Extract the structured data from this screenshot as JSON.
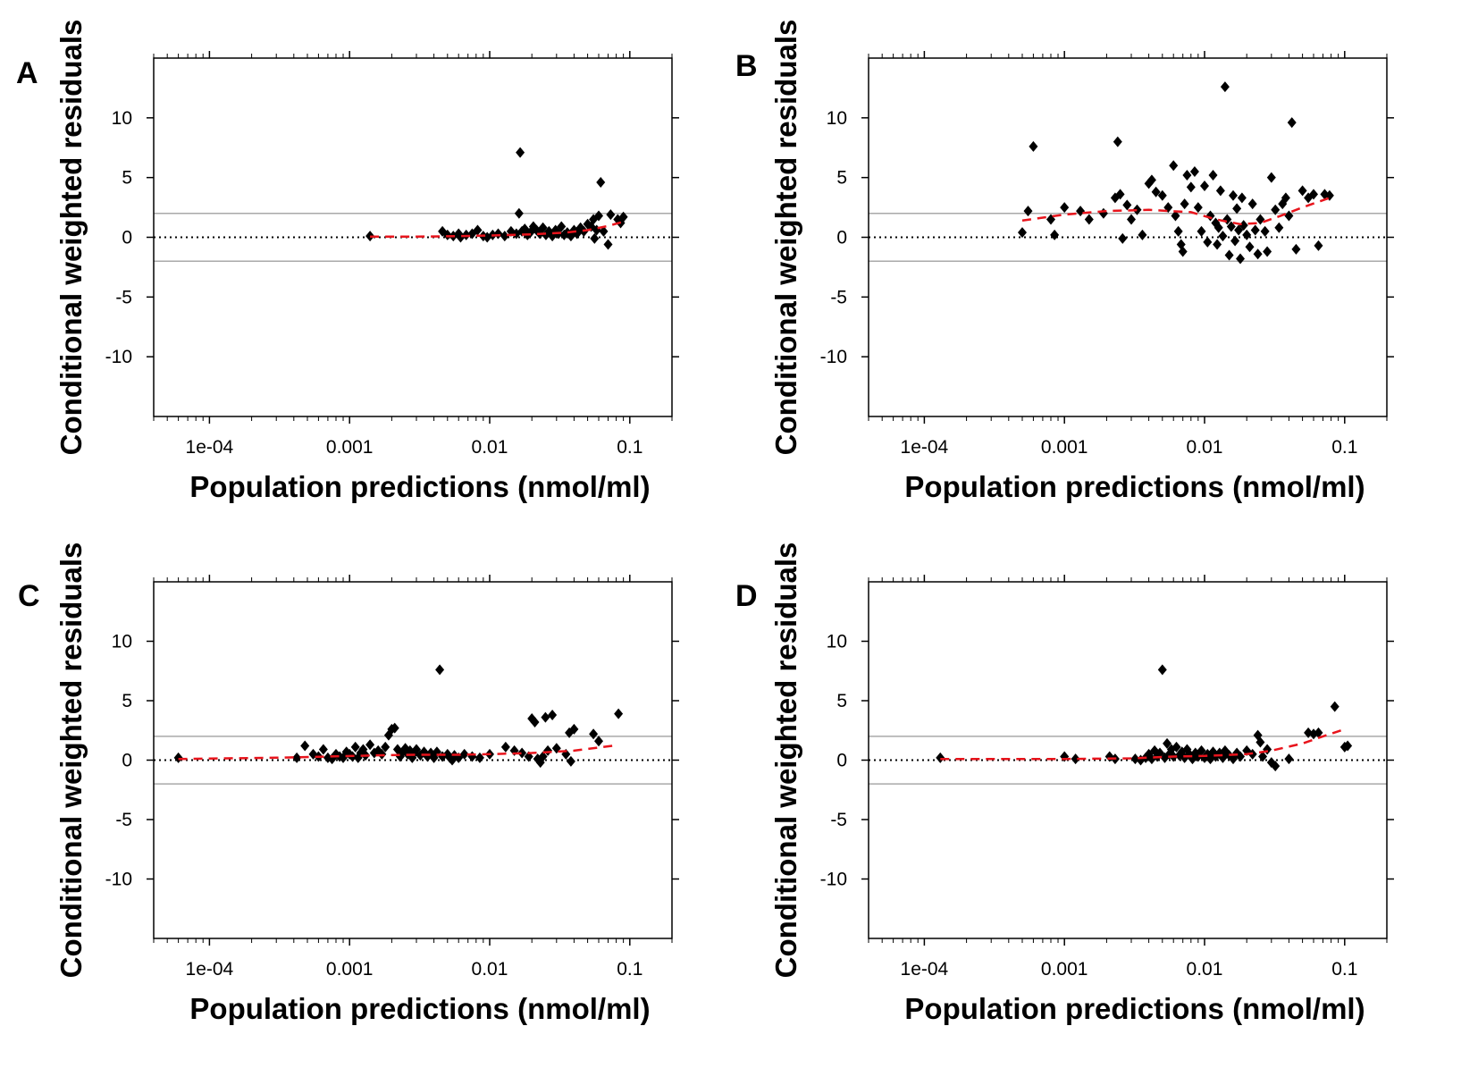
{
  "figure": {
    "background": "#ffffff"
  },
  "colors": {
    "axis": "#000000",
    "point": "#000000",
    "smooth": "#e8141c",
    "ref_band": "#a9a9a9",
    "zero_line": "#000000"
  },
  "chart_data": [
    {
      "panel": "A",
      "type": "scatter",
      "xlabel": "Population predictions (nmol/ml)",
      "ylabel": "Conditional weighted residuals",
      "xscale": "log",
      "xlim": [
        4e-05,
        0.2
      ],
      "ylim": [
        -15,
        15
      ],
      "x_ticks": [
        0.0001,
        0.001,
        0.01,
        0.1
      ],
      "x_tick_labels": [
        "1e-04",
        "0.001",
        "0.01",
        "0.1"
      ],
      "y_ticks": [
        -10,
        -5,
        0,
        5,
        10
      ],
      "y_tick_labels": [
        "-10",
        "-5",
        "0",
        "5",
        "10"
      ],
      "reference_lines": [
        {
          "y": 0,
          "style": "dotted"
        },
        {
          "y": 2,
          "style": "solid-gray"
        },
        {
          "y": -2,
          "style": "solid-gray"
        }
      ],
      "points": [
        [
          0.0014,
          0.1
        ],
        [
          0.0046,
          0.5
        ],
        [
          0.005,
          0.2
        ],
        [
          0.0055,
          0.1
        ],
        [
          0.006,
          0.3
        ],
        [
          0.0062,
          0
        ],
        [
          0.0068,
          0.2
        ],
        [
          0.0075,
          0.3
        ],
        [
          0.0082,
          0.6
        ],
        [
          0.009,
          0.1
        ],
        [
          0.0096,
          0
        ],
        [
          0.0105,
          0.2
        ],
        [
          0.0115,
          0.3
        ],
        [
          0.0128,
          0.1
        ],
        [
          0.0142,
          0.5
        ],
        [
          0.0155,
          0.3
        ],
        [
          0.0162,
          2
        ],
        [
          0.0165,
          7.1
        ],
        [
          0.017,
          0.5
        ],
        [
          0.0178,
          0.7
        ],
        [
          0.0186,
          0.2
        ],
        [
          0.0195,
          0.4
        ],
        [
          0.0205,
          0.9
        ],
        [
          0.0216,
          0.6
        ],
        [
          0.0228,
          0.3
        ],
        [
          0.024,
          0.8
        ],
        [
          0.0252,
          0.2
        ],
        [
          0.0265,
          0.5
        ],
        [
          0.028,
          0.1
        ],
        [
          0.0295,
          0.6
        ],
        [
          0.031,
          0.3
        ],
        [
          0.0325,
          0.9
        ],
        [
          0.034,
          0.2
        ],
        [
          0.0358,
          0.4
        ],
        [
          0.038,
          0.1
        ],
        [
          0.04,
          0.6
        ],
        [
          0.042,
          0.3
        ],
        [
          0.0445,
          0.8
        ],
        [
          0.047,
          0.5
        ],
        [
          0.05,
          1.1
        ],
        [
          0.053,
          0.9
        ],
        [
          0.055,
          1.5
        ],
        [
          0.056,
          -0.1
        ],
        [
          0.058,
          0.6
        ],
        [
          0.06,
          1.8
        ],
        [
          0.062,
          4.6
        ],
        [
          0.065,
          0.5
        ],
        [
          0.07,
          -0.6
        ],
        [
          0.073,
          1.9
        ],
        [
          0.082,
          1.5
        ],
        [
          0.086,
          1.2
        ],
        [
          0.09,
          1.7
        ]
      ],
      "smooth": [
        [
          0.0014,
          0.05
        ],
        [
          0.003,
          0.05
        ],
        [
          0.006,
          0.1
        ],
        [
          0.01,
          0.15
        ],
        [
          0.02,
          0.25
        ],
        [
          0.035,
          0.4
        ],
        [
          0.05,
          0.6
        ],
        [
          0.07,
          0.95
        ],
        [
          0.09,
          1.3
        ]
      ]
    },
    {
      "panel": "B",
      "type": "scatter",
      "xlabel": "Population predictions (nmol/ml)",
      "ylabel": "Conditional weighted residuals",
      "xscale": "log",
      "xlim": [
        4e-05,
        0.2
      ],
      "ylim": [
        -15,
        15
      ],
      "x_ticks": [
        0.0001,
        0.001,
        0.01,
        0.1
      ],
      "x_tick_labels": [
        "1e-04",
        "0.001",
        "0.01",
        "0.1"
      ],
      "y_ticks": [
        -10,
        -5,
        0,
        5,
        10
      ],
      "y_tick_labels": [
        "-10",
        "-5",
        "0",
        "5",
        "10"
      ],
      "reference_lines": [
        {
          "y": 0,
          "style": "dotted"
        },
        {
          "y": 2,
          "style": "solid-gray"
        },
        {
          "y": -2,
          "style": "solid-gray"
        }
      ],
      "points": [
        [
          0.0005,
          0.4
        ],
        [
          0.00055,
          2.2
        ],
        [
          0.0006,
          7.6
        ],
        [
          0.0008,
          1.5
        ],
        [
          0.00085,
          0.2
        ],
        [
          0.001,
          2.5
        ],
        [
          0.0013,
          2.2
        ],
        [
          0.0015,
          1.5
        ],
        [
          0.0019,
          2
        ],
        [
          0.0023,
          3.3
        ],
        [
          0.0024,
          8
        ],
        [
          0.0025,
          3.6
        ],
        [
          0.0026,
          -0.1
        ],
        [
          0.0028,
          2.7
        ],
        [
          0.003,
          1.5
        ],
        [
          0.0033,
          2.3
        ],
        [
          0.0036,
          0.2
        ],
        [
          0.004,
          4.5
        ],
        [
          0.0042,
          4.8
        ],
        [
          0.0045,
          3.8
        ],
        [
          0.005,
          3.5
        ],
        [
          0.0055,
          2.5
        ],
        [
          0.006,
          6
        ],
        [
          0.0062,
          1.8
        ],
        [
          0.0065,
          0.5
        ],
        [
          0.0068,
          -0.6
        ],
        [
          0.007,
          -1.2
        ],
        [
          0.0072,
          2.8
        ],
        [
          0.0075,
          5.2
        ],
        [
          0.008,
          4.2
        ],
        [
          0.0085,
          5.5
        ],
        [
          0.009,
          2.5
        ],
        [
          0.0095,
          0.5
        ],
        [
          0.01,
          4.3
        ],
        [
          0.0105,
          -0.4
        ],
        [
          0.011,
          1.8
        ],
        [
          0.0115,
          5.2
        ],
        [
          0.012,
          1.2
        ],
        [
          0.0123,
          -0.6
        ],
        [
          0.0126,
          0.8
        ],
        [
          0.013,
          3.9
        ],
        [
          0.0135,
          0.1
        ],
        [
          0.014,
          12.6
        ],
        [
          0.0145,
          1.5
        ],
        [
          0.015,
          -1.5
        ],
        [
          0.0155,
          0.9
        ],
        [
          0.016,
          3.5
        ],
        [
          0.0165,
          -0.3
        ],
        [
          0.017,
          2.4
        ],
        [
          0.0175,
          0.6
        ],
        [
          0.018,
          -1.8
        ],
        [
          0.0185,
          3.3
        ],
        [
          0.019,
          1
        ],
        [
          0.02,
          0.2
        ],
        [
          0.021,
          -0.8
        ],
        [
          0.022,
          2.8
        ],
        [
          0.023,
          0.6
        ],
        [
          0.024,
          -1.4
        ],
        [
          0.025,
          1.5
        ],
        [
          0.027,
          0.5
        ],
        [
          0.028,
          -1.2
        ],
        [
          0.03,
          5
        ],
        [
          0.032,
          2.3
        ],
        [
          0.034,
          0.8
        ],
        [
          0.036,
          2.8
        ],
        [
          0.038,
          3.3
        ],
        [
          0.04,
          1.8
        ],
        [
          0.042,
          9.6
        ],
        [
          0.045,
          -1
        ],
        [
          0.05,
          3.9
        ],
        [
          0.055,
          3.3
        ],
        [
          0.06,
          3.6
        ],
        [
          0.065,
          -0.7
        ],
        [
          0.072,
          3.6
        ],
        [
          0.078,
          3.5
        ]
      ],
      "smooth": [
        [
          0.0005,
          1.4
        ],
        [
          0.001,
          1.9
        ],
        [
          0.002,
          2.2
        ],
        [
          0.004,
          2.3
        ],
        [
          0.008,
          2.1
        ],
        [
          0.012,
          1.5
        ],
        [
          0.018,
          1.1
        ],
        [
          0.025,
          1.2
        ],
        [
          0.035,
          1.8
        ],
        [
          0.05,
          2.5
        ],
        [
          0.078,
          3.3
        ]
      ]
    },
    {
      "panel": "C",
      "type": "scatter",
      "xlabel": "Population predictions (nmol/ml)",
      "ylabel": "Conditional weighted residuals",
      "xscale": "log",
      "xlim": [
        4e-05,
        0.2
      ],
      "ylim": [
        -15,
        15
      ],
      "x_ticks": [
        0.0001,
        0.001,
        0.01,
        0.1
      ],
      "x_tick_labels": [
        "1e-04",
        "0.001",
        "0.01",
        "0.1"
      ],
      "y_ticks": [
        -10,
        -5,
        0,
        5,
        10
      ],
      "y_tick_labels": [
        "-10",
        "-5",
        "0",
        "5",
        "10"
      ],
      "reference_lines": [
        {
          "y": 0,
          "style": "dotted"
        },
        {
          "y": 2,
          "style": "solid-gray"
        },
        {
          "y": -2,
          "style": "solid-gray"
        }
      ],
      "points": [
        [
          6e-05,
          0.2
        ],
        [
          0.00042,
          0.2
        ],
        [
          0.00048,
          1.2
        ],
        [
          0.00055,
          0.5
        ],
        [
          0.0006,
          0.3
        ],
        [
          0.00065,
          0.9
        ],
        [
          0.0007,
          0.2
        ],
        [
          0.00075,
          0.1
        ],
        [
          0.0008,
          0.5
        ],
        [
          0.00085,
          0.3
        ],
        [
          0.0009,
          0.2
        ],
        [
          0.00095,
          0.7
        ],
        [
          0.001,
          0.5
        ],
        [
          0.00105,
          0.3
        ],
        [
          0.0011,
          1.1
        ],
        [
          0.00115,
          0.2
        ],
        [
          0.0012,
          0.6
        ],
        [
          0.00125,
          0.9
        ],
        [
          0.0013,
          0.4
        ],
        [
          0.0014,
          1.3
        ],
        [
          0.0015,
          0.6
        ],
        [
          0.0016,
          0.8
        ],
        [
          0.0017,
          0.5
        ],
        [
          0.0018,
          1.1
        ],
        [
          0.0019,
          2.1
        ],
        [
          0.002,
          2.6
        ],
        [
          0.0021,
          2.7
        ],
        [
          0.0022,
          0.9
        ],
        [
          0.0023,
          0.3
        ],
        [
          0.0024,
          0.7
        ],
        [
          0.0025,
          1
        ],
        [
          0.0026,
          0.5
        ],
        [
          0.0027,
          0.8
        ],
        [
          0.0028,
          0.2
        ],
        [
          0.0029,
          0.6
        ],
        [
          0.003,
          0.9
        ],
        [
          0.0032,
          0.4
        ],
        [
          0.0034,
          0.7
        ],
        [
          0.0036,
          0.3
        ],
        [
          0.0038,
          0.6
        ],
        [
          0.004,
          0.2
        ],
        [
          0.0042,
          0.7
        ],
        [
          0.0044,
          7.6
        ],
        [
          0.0046,
          0.3
        ],
        [
          0.005,
          0.5
        ],
        [
          0.0052,
          0.2
        ],
        [
          0.0054,
          0
        ],
        [
          0.0056,
          0.4
        ],
        [
          0.006,
          0.2
        ],
        [
          0.0066,
          0.5
        ],
        [
          0.0075,
          0.3
        ],
        [
          0.0085,
          0.2
        ],
        [
          0.01,
          0.5
        ],
        [
          0.013,
          1.1
        ],
        [
          0.015,
          0.8
        ],
        [
          0.017,
          0.6
        ],
        [
          0.019,
          0.3
        ],
        [
          0.02,
          3.5
        ],
        [
          0.021,
          3.2
        ],
        [
          0.022,
          0.1
        ],
        [
          0.023,
          -0.2
        ],
        [
          0.024,
          0.3
        ],
        [
          0.025,
          3.6
        ],
        [
          0.026,
          0.8
        ],
        [
          0.028,
          3.8
        ],
        [
          0.03,
          1
        ],
        [
          0.035,
          0.5
        ],
        [
          0.037,
          2.3
        ],
        [
          0.038,
          -0.1
        ],
        [
          0.04,
          2.6
        ],
        [
          0.055,
          2.2
        ],
        [
          0.06,
          1.6
        ],
        [
          0.083,
          3.9
        ]
      ],
      "smooth": [
        [
          6e-05,
          0.1
        ],
        [
          0.0003,
          0.2
        ],
        [
          0.0007,
          0.3
        ],
        [
          0.0015,
          0.4
        ],
        [
          0.003,
          0.45
        ],
        [
          0.006,
          0.45
        ],
        [
          0.01,
          0.5
        ],
        [
          0.02,
          0.6
        ],
        [
          0.04,
          0.8
        ],
        [
          0.075,
          1.2
        ]
      ]
    },
    {
      "panel": "D",
      "type": "scatter",
      "xlabel": "Population predictions (nmol/ml)",
      "ylabel": "Conditional weighted residuals",
      "xscale": "log",
      "xlim": [
        4e-05,
        0.2
      ],
      "ylim": [
        -15,
        15
      ],
      "x_ticks": [
        0.0001,
        0.001,
        0.01,
        0.1
      ],
      "x_tick_labels": [
        "1e-04",
        "0.001",
        "0.01",
        "0.1"
      ],
      "y_ticks": [
        -10,
        -5,
        0,
        5,
        10
      ],
      "y_tick_labels": [
        "-10",
        "-5",
        "0",
        "5",
        "10"
      ],
      "reference_lines": [
        {
          "y": 0,
          "style": "dotted"
        },
        {
          "y": 2,
          "style": "solid-gray"
        },
        {
          "y": -2,
          "style": "solid-gray"
        }
      ],
      "points": [
        [
          0.00013,
          0.2
        ],
        [
          0.001,
          0.3
        ],
        [
          0.0012,
          0.1
        ],
        [
          0.0021,
          0.3
        ],
        [
          0.0023,
          0.1
        ],
        [
          0.0032,
          0.1
        ],
        [
          0.0035,
          0
        ],
        [
          0.0038,
          0.2
        ],
        [
          0.004,
          0.5
        ],
        [
          0.0042,
          0.1
        ],
        [
          0.0044,
          0.8
        ],
        [
          0.0046,
          0.3
        ],
        [
          0.0048,
          0.6
        ],
        [
          0.005,
          7.6
        ],
        [
          0.0052,
          0.2
        ],
        [
          0.0054,
          1.4
        ],
        [
          0.0056,
          0.5
        ],
        [
          0.0058,
          0.9
        ],
        [
          0.006,
          0.3
        ],
        [
          0.0063,
          1.1
        ],
        [
          0.0066,
          0.4
        ],
        [
          0.0069,
          0.7
        ],
        [
          0.0072,
          0.2
        ],
        [
          0.0075,
          0.9
        ],
        [
          0.0078,
          0.5
        ],
        [
          0.0082,
          0.1
        ],
        [
          0.0086,
          0.6
        ],
        [
          0.009,
          0.3
        ],
        [
          0.0095,
          0.8
        ],
        [
          0.01,
          0.2
        ],
        [
          0.0105,
          0.5
        ],
        [
          0.011,
          0.1
        ],
        [
          0.0115,
          0.7
        ],
        [
          0.012,
          0.3
        ],
        [
          0.0128,
          0.6
        ],
        [
          0.0135,
          0.2
        ],
        [
          0.014,
          0.8
        ],
        [
          0.015,
          0.4
        ],
        [
          0.016,
          0.1
        ],
        [
          0.017,
          0.6
        ],
        [
          0.018,
          0.3
        ],
        [
          0.02,
          0.8
        ],
        [
          0.022,
          0.5
        ],
        [
          0.024,
          2.1
        ],
        [
          0.025,
          1.5
        ],
        [
          0.026,
          0.3
        ],
        [
          0.028,
          0.9
        ],
        [
          0.03,
          -0.2
        ],
        [
          0.032,
          -0.5
        ],
        [
          0.04,
          0.1
        ],
        [
          0.055,
          2.3
        ],
        [
          0.06,
          2.2
        ],
        [
          0.065,
          2.3
        ],
        [
          0.085,
          4.5
        ],
        [
          0.1,
          1.1
        ],
        [
          0.105,
          1.2
        ]
      ],
      "smooth": [
        [
          0.00013,
          0.1
        ],
        [
          0.0005,
          0.1
        ],
        [
          0.001,
          0.1
        ],
        [
          0.003,
          0.15
        ],
        [
          0.006,
          0.3
        ],
        [
          0.01,
          0.35
        ],
        [
          0.02,
          0.5
        ],
        [
          0.03,
          0.8
        ],
        [
          0.05,
          1.4
        ],
        [
          0.07,
          2
        ],
        [
          0.1,
          2.6
        ]
      ]
    }
  ]
}
